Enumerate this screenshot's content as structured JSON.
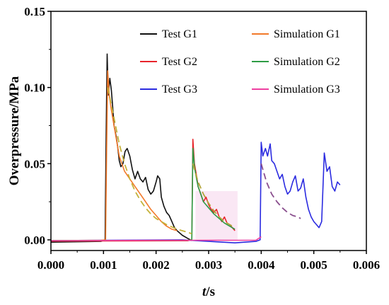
{
  "chart_data": {
    "type": "line",
    "xlabel_italic": "t",
    "xlabel_unit": "/s",
    "ylabel": "Overpressure/MPa",
    "xlim": [
      0,
      0.006
    ],
    "ylim": [
      -0.007,
      0.15
    ],
    "x_ticks": [
      "0.000",
      "0.001",
      "0.002",
      "0.003",
      "0.004",
      "0.005",
      "0.006"
    ],
    "y_ticks": [
      "0.00",
      "0.05",
      "0.10",
      "0.15"
    ],
    "grid": false,
    "legend_position": "top-right",
    "series": [
      {
        "name": "Test G1",
        "color": "#111111",
        "dashed": false,
        "points": [
          [
            0,
            -0.0015
          ],
          [
            0.00095,
            -0.001
          ],
          [
            0.00103,
            0.0
          ],
          [
            0.00105,
            0.07
          ],
          [
            0.00107,
            0.122
          ],
          [
            0.00109,
            0.095
          ],
          [
            0.00112,
            0.106
          ],
          [
            0.00115,
            0.098
          ],
          [
            0.00118,
            0.085
          ],
          [
            0.0012,
            0.075
          ],
          [
            0.00124,
            0.068
          ],
          [
            0.00127,
            0.061
          ],
          [
            0.0013,
            0.052
          ],
          [
            0.00133,
            0.048
          ],
          [
            0.00137,
            0.05
          ],
          [
            0.00141,
            0.058
          ],
          [
            0.00145,
            0.06
          ],
          [
            0.0015,
            0.055
          ],
          [
            0.00155,
            0.046
          ],
          [
            0.0016,
            0.04
          ],
          [
            0.00165,
            0.045
          ],
          [
            0.0017,
            0.04
          ],
          [
            0.00175,
            0.038
          ],
          [
            0.0018,
            0.041
          ],
          [
            0.00185,
            0.033
          ],
          [
            0.0019,
            0.03
          ],
          [
            0.00195,
            0.032
          ],
          [
            0.002,
            0.038
          ],
          [
            0.00203,
            0.042
          ],
          [
            0.00207,
            0.04
          ],
          [
            0.0021,
            0.028
          ],
          [
            0.00215,
            0.022
          ],
          [
            0.0022,
            0.018
          ],
          [
            0.00225,
            0.016
          ],
          [
            0.0023,
            0.012
          ],
          [
            0.00235,
            0.008
          ],
          [
            0.0024,
            0.006
          ],
          [
            0.0025,
            0.003
          ],
          [
            0.0026,
            0.001
          ],
          [
            0.00268,
            -0.0005
          ]
        ]
      },
      {
        "name": "Test G2",
        "color": "#e8242b",
        "dashed": false,
        "points": [
          [
            0,
            -0.0008
          ],
          [
            0.0026,
            -0.0006
          ],
          [
            0.00268,
            0.0
          ],
          [
            0.0027,
            0.066
          ],
          [
            0.00273,
            0.05
          ],
          [
            0.00277,
            0.042
          ],
          [
            0.0028,
            0.035
          ],
          [
            0.00285,
            0.03
          ],
          [
            0.0029,
            0.025
          ],
          [
            0.00295,
            0.028
          ],
          [
            0.003,
            0.023
          ],
          [
            0.00305,
            0.02
          ],
          [
            0.0031,
            0.018
          ],
          [
            0.00315,
            0.02
          ],
          [
            0.0032,
            0.015
          ],
          [
            0.00325,
            0.012
          ],
          [
            0.0033,
            0.015
          ],
          [
            0.00335,
            0.011
          ],
          [
            0.0034,
            0.01
          ],
          [
            0.00345,
            0.008
          ],
          [
            0.0035,
            0.006
          ]
        ]
      },
      {
        "name": "Test G3",
        "color": "#2b2be0",
        "dashed": false,
        "points": [
          [
            0,
            -0.0005
          ],
          [
            0.0025,
            0.0
          ],
          [
            0.0035,
            -0.002
          ],
          [
            0.0039,
            -0.001
          ],
          [
            0.00398,
            0.0
          ],
          [
            0.004,
            0.064
          ],
          [
            0.00403,
            0.055
          ],
          [
            0.00408,
            0.06
          ],
          [
            0.00412,
            0.055
          ],
          [
            0.00417,
            0.063
          ],
          [
            0.0042,
            0.052
          ],
          [
            0.00425,
            0.05
          ],
          [
            0.0043,
            0.045
          ],
          [
            0.00435,
            0.04
          ],
          [
            0.0044,
            0.043
          ],
          [
            0.00445,
            0.035
          ],
          [
            0.0045,
            0.03
          ],
          [
            0.00455,
            0.032
          ],
          [
            0.0046,
            0.038
          ],
          [
            0.00465,
            0.042
          ],
          [
            0.0047,
            0.032
          ],
          [
            0.00475,
            0.034
          ],
          [
            0.0048,
            0.04
          ],
          [
            0.00485,
            0.028
          ],
          [
            0.0049,
            0.02
          ],
          [
            0.00495,
            0.015
          ],
          [
            0.005,
            0.012
          ],
          [
            0.00505,
            0.01
          ],
          [
            0.0051,
            0.008
          ],
          [
            0.00515,
            0.012
          ],
          [
            0.0052,
            0.057
          ],
          [
            0.00525,
            0.045
          ],
          [
            0.0053,
            0.048
          ],
          [
            0.00535,
            0.035
          ],
          [
            0.0054,
            0.032
          ],
          [
            0.00545,
            0.038
          ],
          [
            0.0055,
            0.036
          ]
        ]
      },
      {
        "name": "Simulation G1",
        "color": "#f2792a",
        "dashed": false,
        "points": [
          [
            0,
            -0.0005
          ],
          [
            0.00095,
            -0.0003
          ],
          [
            0.00104,
            0.0
          ],
          [
            0.00106,
            0.06
          ],
          [
            0.00108,
            0.111
          ],
          [
            0.00111,
            0.095
          ],
          [
            0.00115,
            0.085
          ],
          [
            0.0012,
            0.075
          ],
          [
            0.00125,
            0.065
          ],
          [
            0.0013,
            0.055
          ],
          [
            0.0014,
            0.045
          ],
          [
            0.0015,
            0.04
          ],
          [
            0.0016,
            0.035
          ],
          [
            0.0017,
            0.03
          ],
          [
            0.0018,
            0.025
          ],
          [
            0.0019,
            0.02
          ],
          [
            0.002,
            0.016
          ],
          [
            0.0021,
            0.012
          ],
          [
            0.0022,
            0.009
          ],
          [
            0.0023,
            0.007
          ],
          [
            0.0024,
            0.006
          ]
        ]
      },
      {
        "name": "Simulation G2",
        "color": "#2e9c45",
        "dashed": false,
        "points": [
          [
            0,
            -0.0005
          ],
          [
            0.0026,
            -0.0003
          ],
          [
            0.00268,
            0.0
          ],
          [
            0.0027,
            0.06
          ],
          [
            0.00273,
            0.048
          ],
          [
            0.00277,
            0.04
          ],
          [
            0.0028,
            0.035
          ],
          [
            0.00285,
            0.03
          ],
          [
            0.0029,
            0.025
          ],
          [
            0.00295,
            0.023
          ],
          [
            0.003,
            0.021
          ],
          [
            0.0031,
            0.017
          ],
          [
            0.0032,
            0.014
          ],
          [
            0.0033,
            0.011
          ],
          [
            0.0034,
            0.009
          ],
          [
            0.0035,
            0.007
          ]
        ]
      },
      {
        "name": "Simulation G3",
        "color": "#ee3fa0",
        "dashed": false,
        "points": [
          [
            0,
            -0.0006
          ],
          [
            0.002,
            -0.0003
          ],
          [
            0.0039,
            -0.0002
          ],
          [
            0.004,
            0.002
          ]
        ]
      },
      {
        "name": "",
        "color": "#c4b23a",
        "dashed": true,
        "points": [
          [
            0.00108,
            0.1
          ],
          [
            0.0012,
            0.08
          ],
          [
            0.0013,
            0.063
          ],
          [
            0.0014,
            0.05
          ],
          [
            0.0015,
            0.04
          ],
          [
            0.0016,
            0.032
          ],
          [
            0.0017,
            0.026
          ],
          [
            0.0018,
            0.021
          ],
          [
            0.0019,
            0.017
          ],
          [
            0.002,
            0.014
          ],
          [
            0.0022,
            0.01
          ],
          [
            0.0024,
            0.007
          ],
          [
            0.0026,
            0.005
          ],
          [
            0.00268,
            0.004
          ]
        ]
      },
      {
        "name": "",
        "color": "#b3a53a",
        "dashed": true,
        "points": [
          [
            0.0027,
            0.05
          ],
          [
            0.0028,
            0.038
          ],
          [
            0.0029,
            0.03
          ],
          [
            0.003,
            0.024
          ],
          [
            0.0031,
            0.019
          ],
          [
            0.0032,
            0.015
          ],
          [
            0.0033,
            0.012
          ],
          [
            0.0034,
            0.01
          ],
          [
            0.0035,
            0.008
          ]
        ]
      },
      {
        "name": "",
        "color": "#8a4f8e",
        "dashed": true,
        "points": [
          [
            0.004,
            0.05
          ],
          [
            0.0041,
            0.038
          ],
          [
            0.0042,
            0.03
          ],
          [
            0.0043,
            0.025
          ],
          [
            0.0044,
            0.021
          ],
          [
            0.0045,
            0.018
          ],
          [
            0.0046,
            0.016
          ],
          [
            0.0047,
            0.015
          ],
          [
            0.00475,
            0.014
          ]
        ]
      }
    ],
    "shaded_regions": [
      {
        "x": [
          0.00275,
          0.00355
        ],
        "y": [
          0.0,
          0.032
        ],
        "color": "#f6d7ec"
      }
    ]
  }
}
